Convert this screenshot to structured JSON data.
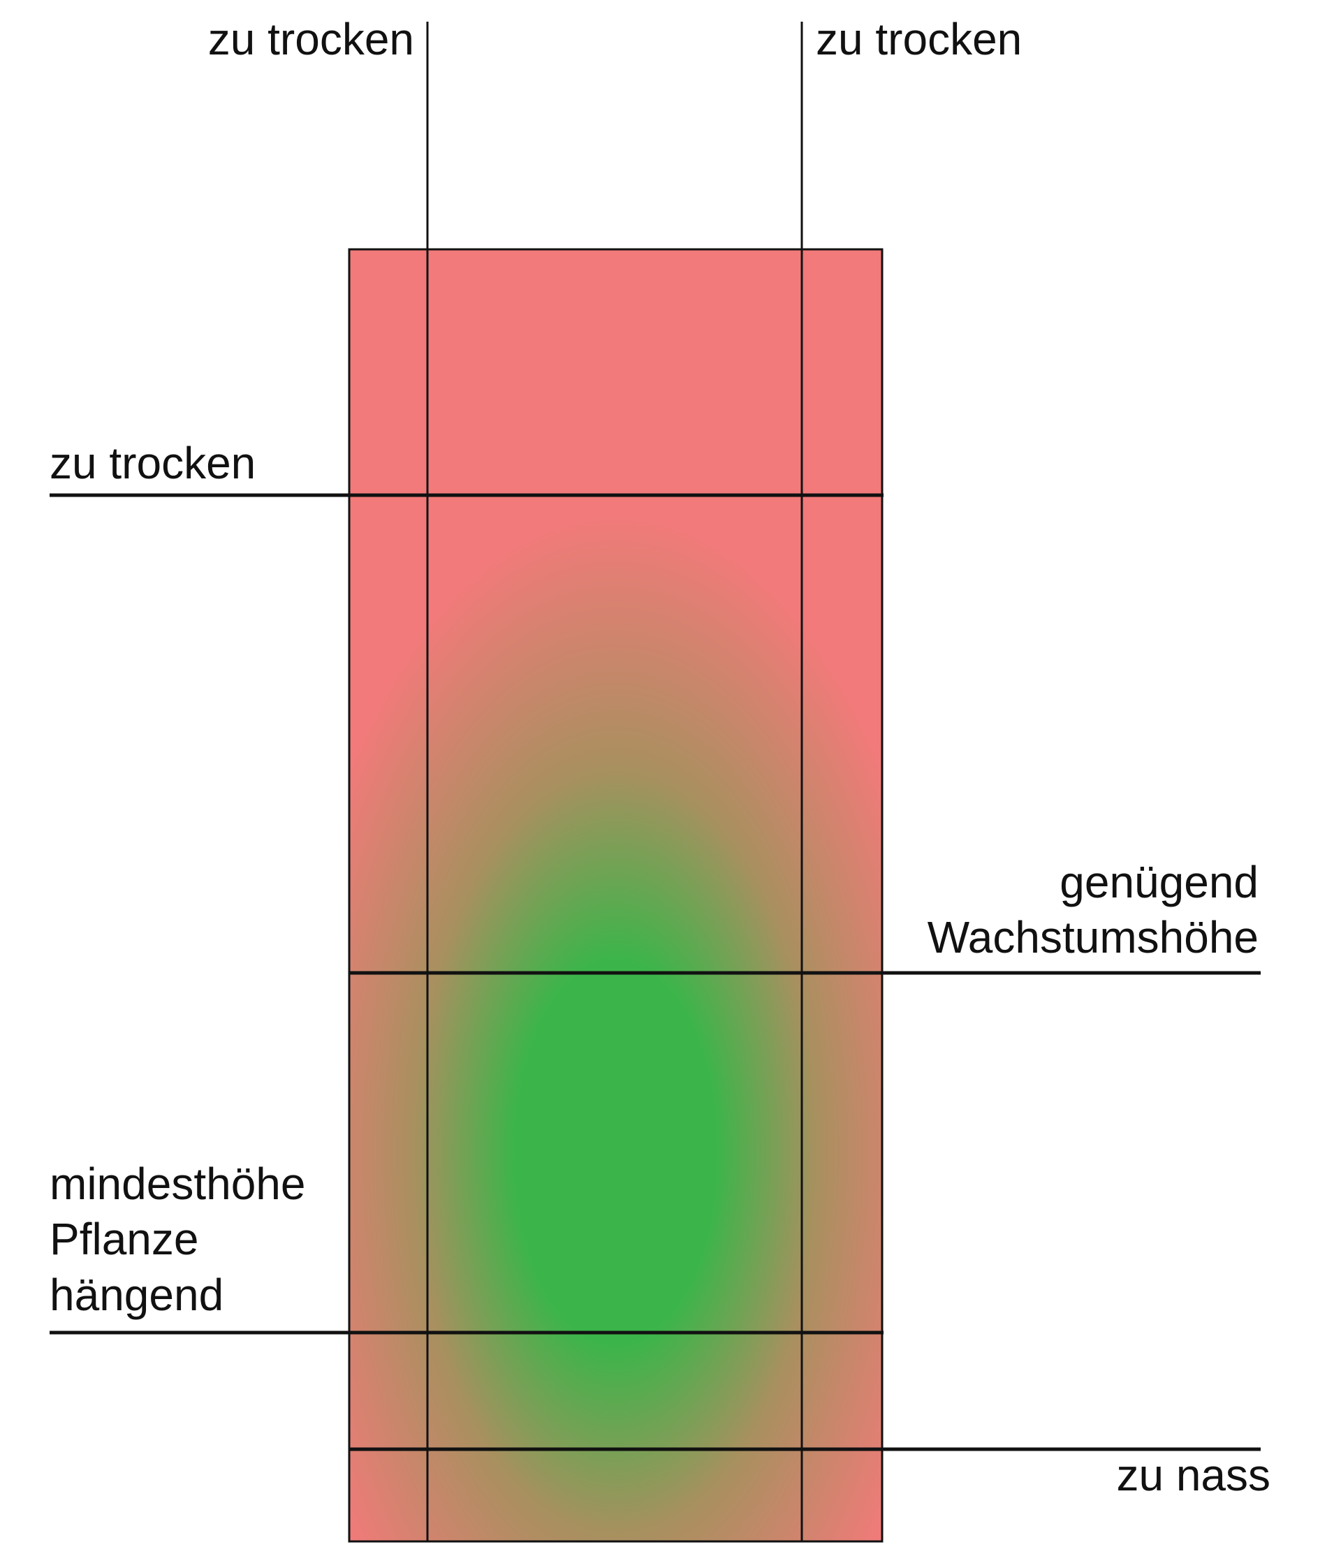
{
  "labels": {
    "top_left": "zu trocken",
    "top_right": "zu trocken",
    "left_upper": "zu trocken",
    "right_middle": [
      "genügend",
      "Wachstumshöhe"
    ],
    "left_lower": [
      "mindesthöhe",
      "Pflanze",
      "hängend"
    ],
    "bottom_right": "zu nass"
  }
}
